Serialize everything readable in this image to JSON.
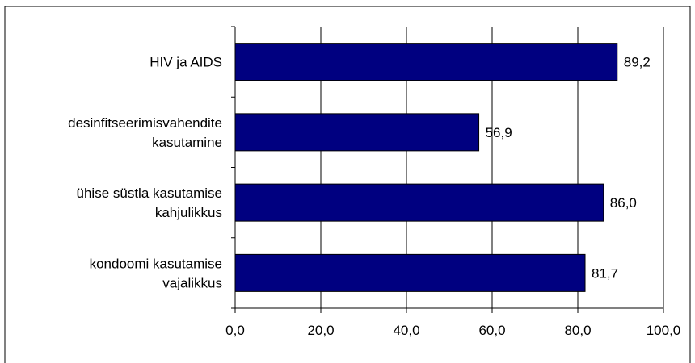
{
  "chart_data": {
    "type": "bar",
    "orientation": "horizontal",
    "categories": [
      [
        "HIV ja AIDS"
      ],
      [
        "desinfitseerimisvahendite",
        "kasutamine"
      ],
      [
        "ühise süstla kasutamise",
        "kahjulikkus"
      ],
      [
        "kondoomi kasutamise",
        "vajalikkus"
      ]
    ],
    "values": [
      89.2,
      56.9,
      86.0,
      81.7
    ],
    "value_labels": [
      "89,2",
      "56,9",
      "86,0",
      "81,7"
    ],
    "xlim": [
      0,
      100
    ],
    "xticks": [
      0,
      20,
      40,
      60,
      80,
      100
    ],
    "xtick_labels": [
      "0,0",
      "20,0",
      "40,0",
      "60,0",
      "80,0",
      "100,0"
    ],
    "grid": "vertical",
    "legend": "none",
    "title": "",
    "xlabel": "",
    "ylabel": "",
    "colors": {
      "bar": "#000080",
      "grid": "#000000",
      "frame": "#000000"
    }
  }
}
